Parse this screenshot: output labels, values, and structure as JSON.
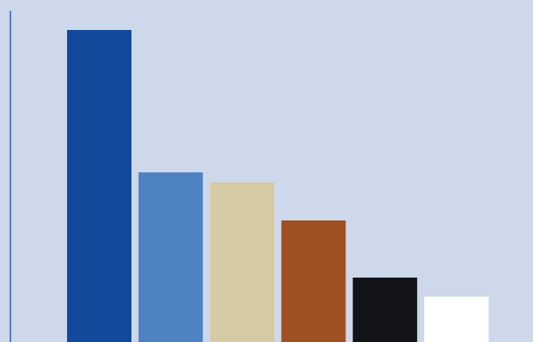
{
  "chart_data": {
    "type": "bar",
    "title": "",
    "xlabel": "",
    "ylabel": "",
    "categories": [
      "",
      "",
      "",
      "",
      "",
      ""
    ],
    "values": [
      344,
      187,
      176,
      134,
      71,
      50
    ],
    "ylim": [
      0,
      365
    ],
    "grid": false,
    "legend": "none",
    "bar_colors": [
      "#12499b",
      "#4f82c3",
      "#d5caa3",
      "#a05121",
      "#121418",
      "#ffffff"
    ],
    "axis_color": "#3d62b5",
    "background": "#cdd8ea"
  }
}
